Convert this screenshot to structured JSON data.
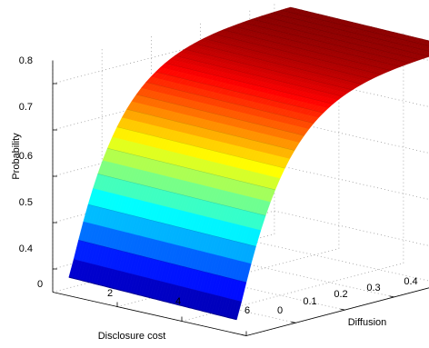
{
  "chart_data": {
    "type": "surface",
    "xlabel": "Disclosure cost",
    "ylabel": "Diffusion",
    "zlabel": "Probability",
    "x_ticks": [
      "2",
      "4",
      "6"
    ],
    "y_ticks": [
      "0",
      "0.1",
      "0.2",
      "0.3",
      "0.4"
    ],
    "z_ticks": [
      "0.4",
      "0.5",
      "0.6",
      "0.7",
      "0.8"
    ],
    "corner_ticks": {
      "x0": "0"
    },
    "xlim": [
      0,
      6
    ],
    "ylim": [
      0,
      0.45
    ],
    "zlim": [
      0.35,
      0.85
    ],
    "colormap": "jet",
    "grid": true,
    "surface": {
      "x_range": [
        0.5,
        5.7
      ],
      "y_range": [
        0,
        0.45
      ],
      "z_at_y0": [
        0.37,
        0.39
      ],
      "z_max": 0.85,
      "curve": "rises steeply with diffusion near 0 and saturates near 0.85; nearly flat along disclosure cost"
    }
  }
}
